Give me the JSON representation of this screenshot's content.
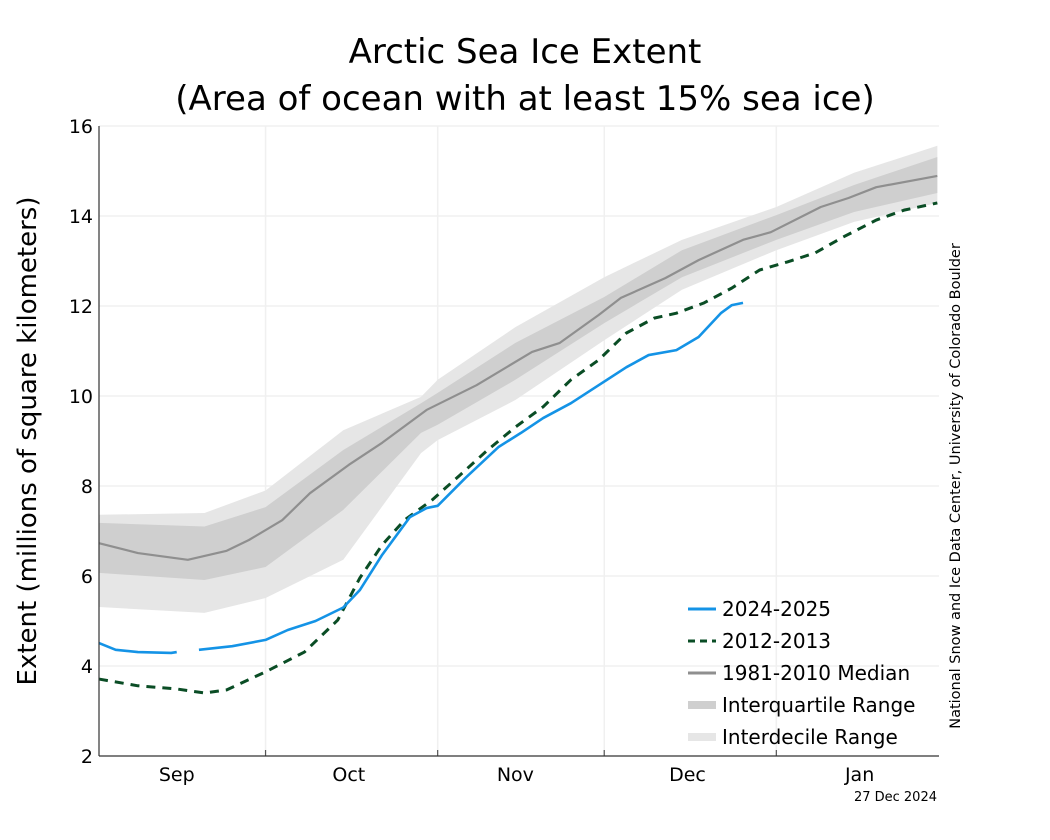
{
  "chart_data": {
    "type": "line",
    "title": "Arctic Sea Ice Extent",
    "subtitle": "(Area of ocean with at least 15% sea ice)",
    "ylabel": "Extent (millions of square kilometers)",
    "xlabel": "",
    "ylim": [
      2,
      16
    ],
    "yticks": [
      2,
      4,
      6,
      8,
      10,
      12,
      14,
      16
    ],
    "xrange": [
      "09-01",
      "01-30"
    ],
    "month_labels": [
      {
        "label": "Sep",
        "mid": "09-15"
      },
      {
        "label": "Oct",
        "mid": "10-16"
      },
      {
        "label": "Nov",
        "mid": "11-15"
      },
      {
        "label": "Dec",
        "mid": "12-16"
      },
      {
        "label": "Jan",
        "mid": "01-16"
      }
    ],
    "month_boundaries": [
      "10-01",
      "11-01",
      "12-01",
      "01-01"
    ],
    "grid": true,
    "legend_placement": "bottom-right",
    "credit": "National Snow and Ice Data Center, University of Colorado Boulder",
    "date_stamp": "27 Dec 2024",
    "colors": {
      "current": "#1493e6",
      "year2012": "#0a4d25",
      "median": "#8f8f8f",
      "iqr": "#cfcfcf",
      "idr": "#e6e6e6"
    },
    "legend": [
      "2024-2025",
      "2012-2013",
      "1981-2010 Median",
      "Interquartile Range",
      "Interdecile Range"
    ],
    "bands": {
      "x": [
        "09-01",
        "09-20",
        "10-01",
        "10-15",
        "10-29",
        "11-01",
        "11-15",
        "12-01",
        "12-15",
        "01-01",
        "01-15",
        "01-30"
      ],
      "idr_high": [
        7.36,
        7.4,
        7.9,
        9.24,
        9.98,
        10.36,
        11.53,
        12.64,
        13.47,
        14.2,
        14.96,
        15.56
      ],
      "iqr_high": [
        7.18,
        7.1,
        7.53,
        8.8,
        9.84,
        10.07,
        11.18,
        12.2,
        13.24,
        14.02,
        14.69,
        15.31
      ],
      "iqr_low": [
        6.07,
        5.91,
        6.2,
        7.47,
        9.18,
        9.36,
        10.36,
        11.62,
        12.64,
        13.47,
        14.09,
        14.51
      ],
      "idr_low": [
        5.31,
        5.18,
        5.51,
        6.36,
        8.73,
        9.02,
        9.91,
        11.24,
        12.36,
        13.24,
        13.87,
        14.29
      ]
    },
    "series": [
      {
        "name": "1981-2010 Median",
        "x": [
          "09-01",
          "09-08",
          "09-17",
          "09-24",
          "09-28",
          "10-04",
          "10-09",
          "10-16",
          "10-22",
          "10-30",
          "11-08",
          "11-18",
          "11-23",
          "11-30",
          "12-04",
          "12-12",
          "12-18",
          "12-26",
          "12-31",
          "01-09",
          "01-14",
          "01-19",
          "01-30"
        ],
        "values": [
          6.73,
          6.51,
          6.36,
          6.56,
          6.8,
          7.24,
          7.84,
          8.47,
          8.96,
          9.69,
          10.24,
          10.98,
          11.18,
          11.8,
          12.18,
          12.62,
          13.02,
          13.47,
          13.64,
          14.2,
          14.4,
          14.64,
          14.89
        ]
      },
      {
        "name": "2012-2013",
        "x": [
          "09-01",
          "09-08",
          "09-15",
          "09-20",
          "09-24",
          "10-01",
          "10-08",
          "10-14",
          "10-18",
          "10-22",
          "10-26",
          "10-31",
          "11-05",
          "11-10",
          "11-15",
          "11-20",
          "11-25",
          "11-30",
          "12-05",
          "12-10",
          "12-14",
          "12-19",
          "12-24",
          "12-29",
          "01-03",
          "01-08",
          "01-13",
          "01-19",
          "01-24",
          "01-30"
        ],
        "values": [
          3.71,
          3.56,
          3.49,
          3.4,
          3.47,
          3.87,
          4.31,
          5.02,
          5.96,
          6.69,
          7.24,
          7.69,
          8.24,
          8.8,
          9.31,
          9.76,
          10.36,
          10.8,
          11.4,
          11.73,
          11.84,
          12.07,
          12.4,
          12.8,
          12.98,
          13.18,
          13.53,
          13.91,
          14.13,
          14.29
        ]
      },
      {
        "name": "2024-2025",
        "x": [
          "09-01",
          "09-04",
          "09-08",
          "09-14",
          "09-15",
          "09-17",
          "09-19",
          "09-25",
          "10-01",
          "10-05",
          "10-10",
          "10-15",
          "10-18",
          "10-22",
          "10-27",
          "10-30",
          "11-01",
          "11-06",
          "11-12",
          "11-16",
          "11-20",
          "11-25",
          "11-30",
          "12-05",
          "12-09",
          "12-14",
          "12-18",
          "12-22",
          "12-24",
          "12-26"
        ],
        "values": [
          4.51,
          4.36,
          4.31,
          4.29,
          4.31,
          null,
          4.36,
          4.44,
          4.58,
          4.8,
          5.0,
          5.3,
          5.69,
          6.47,
          7.31,
          7.51,
          7.56,
          8.18,
          8.87,
          9.18,
          9.51,
          9.84,
          10.24,
          10.64,
          10.91,
          11.02,
          11.31,
          11.84,
          12.02,
          12.07
        ]
      }
    ]
  }
}
